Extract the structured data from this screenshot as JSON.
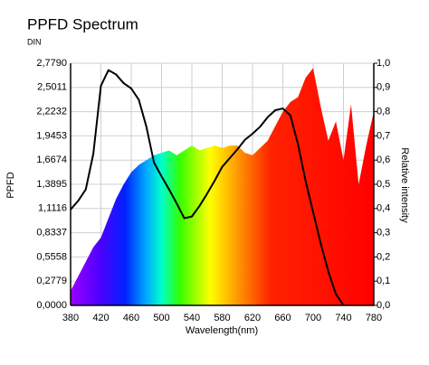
{
  "chart_data": {
    "type": "line",
    "title": "PPFD Spectrum",
    "subtitle": "DIN",
    "xlabel": "Wavelength(nm)",
    "ylabel": "PPFD",
    "y2label": "Relative intensity",
    "x": [
      380,
      390,
      400,
      410,
      420,
      430,
      440,
      450,
      460,
      470,
      480,
      490,
      500,
      510,
      520,
      530,
      540,
      550,
      560,
      570,
      580,
      590,
      600,
      610,
      620,
      630,
      640,
      650,
      660,
      670,
      680,
      690,
      700,
      710,
      720,
      730,
      740,
      750,
      760,
      770,
      780
    ],
    "series": [
      {
        "type": "area",
        "axis": "y2",
        "color": "spectrum",
        "values": [
          0.06,
          0.12,
          0.18,
          0.24,
          0.28,
          0.36,
          0.44,
          0.5,
          0.55,
          0.58,
          0.6,
          0.62,
          0.63,
          0.64,
          0.62,
          0.64,
          0.66,
          0.64,
          0.65,
          0.66,
          0.65,
          0.66,
          0.66,
          0.63,
          0.62,
          0.65,
          0.68,
          0.74,
          0.8,
          0.84,
          0.86,
          0.94,
          0.98,
          0.82,
          0.68,
          0.76,
          0.6,
          0.83,
          0.5,
          0.66,
          0.8
        ]
      },
      {
        "type": "line",
        "color": "#000000",
        "values": [
          1.1,
          1.2,
          1.33,
          1.74,
          2.52,
          2.7,
          2.65,
          2.55,
          2.49,
          2.36,
          2.05,
          1.64,
          1.48,
          1.33,
          1.17,
          1.0,
          1.02,
          1.14,
          1.28,
          1.43,
          1.59,
          1.69,
          1.79,
          1.9,
          1.97,
          2.05,
          2.16,
          2.24,
          2.26,
          2.18,
          1.85,
          1.43,
          1.07,
          0.71,
          0.39,
          0.13,
          0.0,
          null,
          null,
          null,
          null
        ]
      }
    ],
    "xlim": [
      380,
      780
    ],
    "xticks": [
      380,
      420,
      460,
      500,
      540,
      580,
      620,
      660,
      700,
      740,
      780
    ],
    "ylim": [
      0,
      2.779
    ],
    "yticks": [
      {
        "value": 0,
        "label": "0,0000"
      },
      {
        "value": 0.2779,
        "label": "0,2779"
      },
      {
        "value": 0.5558,
        "label": "0,5558"
      },
      {
        "value": 0.8337,
        "label": "0,8337"
      },
      {
        "value": 1.1116,
        "label": "1,1116"
      },
      {
        "value": 1.3895,
        "label": "1,3895"
      },
      {
        "value": 1.6674,
        "label": "1,6674"
      },
      {
        "value": 1.9453,
        "label": "1,9453"
      },
      {
        "value": 2.2232,
        "label": "2,2232"
      },
      {
        "value": 2.5011,
        "label": "2,5011"
      },
      {
        "value": 2.779,
        "label": "2,7790"
      }
    ],
    "y2lim": [
      0,
      1
    ],
    "y2ticks": [
      {
        "value": 0,
        "label": "0,0"
      },
      {
        "value": 0.1,
        "label": "0,1"
      },
      {
        "value": 0.2,
        "label": "0,2"
      },
      {
        "value": 0.3,
        "label": "0,3"
      },
      {
        "value": 0.4,
        "label": "0,4"
      },
      {
        "value": 0.5,
        "label": "0,5"
      },
      {
        "value": 0.6,
        "label": "0,6"
      },
      {
        "value": 0.7,
        "label": "0,7"
      },
      {
        "value": 0.8,
        "label": "0,8"
      },
      {
        "value": 0.9,
        "label": "0,9"
      },
      {
        "value": 1,
        "label": "1,0"
      }
    ],
    "grid": true
  }
}
